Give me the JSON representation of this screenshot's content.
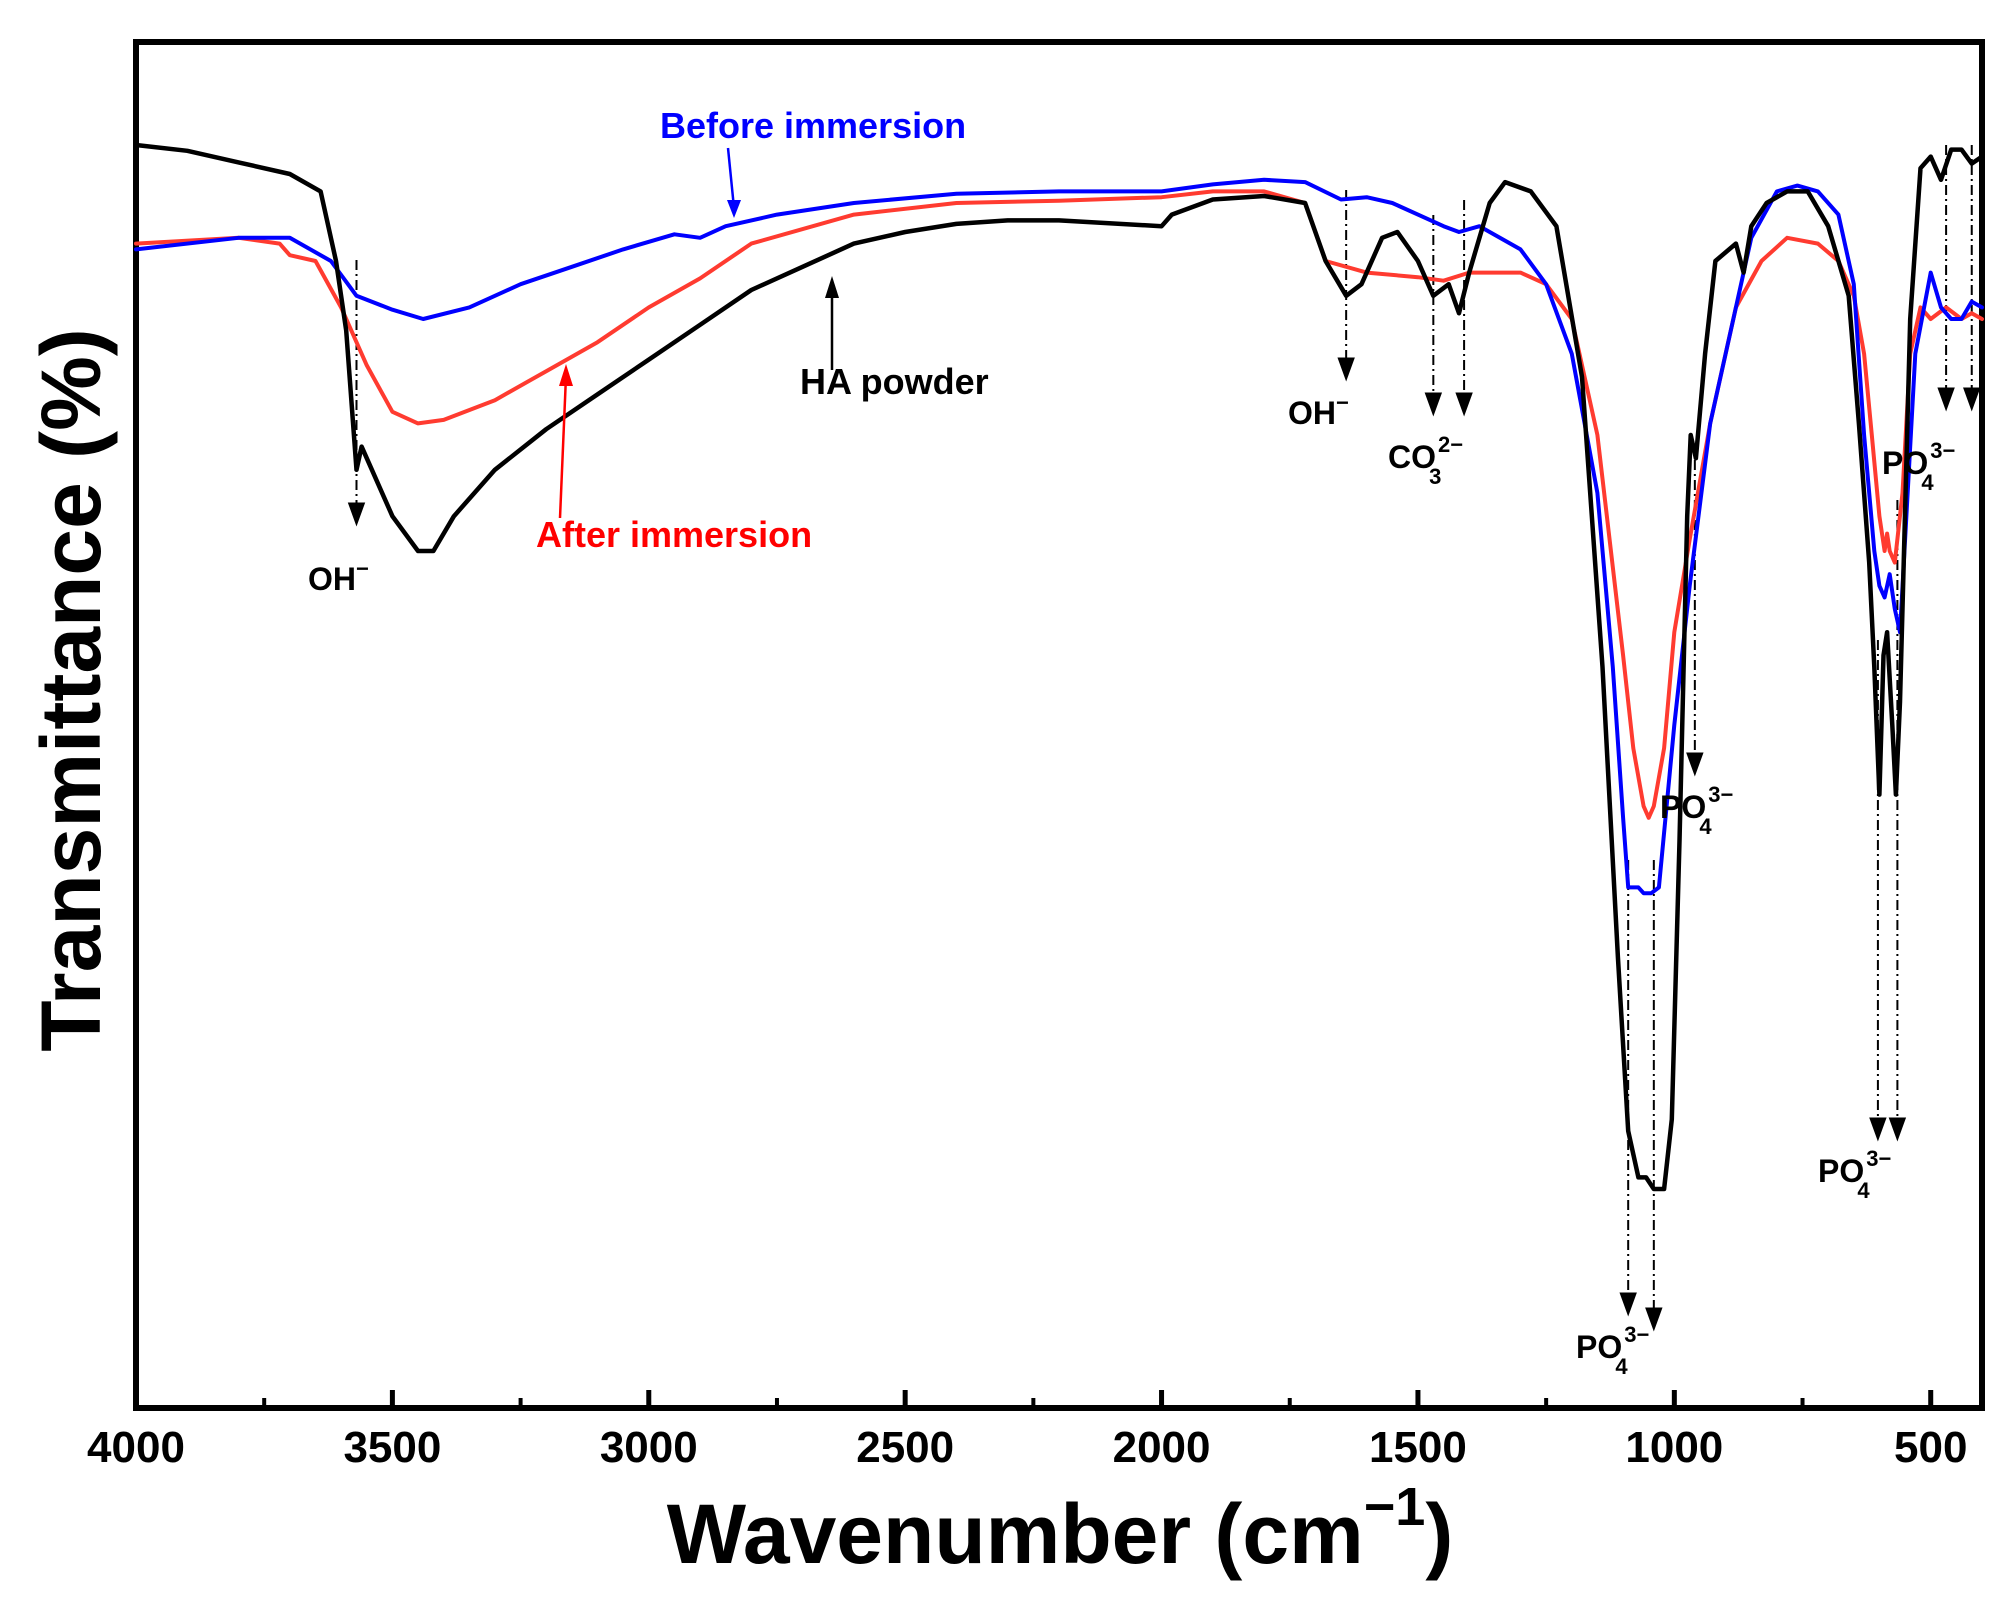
{
  "chart_data": {
    "type": "line",
    "title": "",
    "xlabel": "Wavenumber (cm",
    "xlabel_sup": "−1",
    "xlabel_close": ")",
    "ylabel": "Transmittance (%)",
    "xlim": [
      4000,
      400
    ],
    "ylim": [
      0,
      100
    ],
    "x_ticks": [
      4000,
      3500,
      3000,
      2500,
      2000,
      1500,
      1000,
      500
    ],
    "x_tick_labels": [
      "4000",
      "3500",
      "3000",
      "2500",
      "2000",
      "1500",
      "1000",
      "500"
    ],
    "y_ticks_shown": false,
    "legend": "inline labels",
    "series": [
      {
        "name": "Before immersion",
        "color": "#0000ff",
        "points": [
          [
            4000,
            91
          ],
          [
            3800,
            92
          ],
          [
            3700,
            92
          ],
          [
            3620,
            90
          ],
          [
            3570,
            87
          ],
          [
            3500,
            85.8
          ],
          [
            3440,
            85
          ],
          [
            3350,
            86
          ],
          [
            3250,
            88
          ],
          [
            3150,
            89.5
          ],
          [
            3050,
            91
          ],
          [
            2950,
            92.3
          ],
          [
            2900,
            92
          ],
          [
            2850,
            93
          ],
          [
            2750,
            94
          ],
          [
            2600,
            95
          ],
          [
            2400,
            95.8
          ],
          [
            2200,
            96
          ],
          [
            2000,
            96
          ],
          [
            1900,
            96.6
          ],
          [
            1800,
            97
          ],
          [
            1720,
            96.8
          ],
          [
            1650,
            95.3
          ],
          [
            1600,
            95.5
          ],
          [
            1550,
            95
          ],
          [
            1500,
            94
          ],
          [
            1450,
            93
          ],
          [
            1420,
            92.5
          ],
          [
            1380,
            93
          ],
          [
            1300,
            91
          ],
          [
            1250,
            88
          ],
          [
            1200,
            82
          ],
          [
            1150,
            70
          ],
          [
            1120,
            55
          ],
          [
            1100,
            42
          ],
          [
            1090,
            36
          ],
          [
            1070,
            36
          ],
          [
            1060,
            35.5
          ],
          [
            1045,
            35.5
          ],
          [
            1030,
            36
          ],
          [
            1000,
            50
          ],
          [
            970,
            62
          ],
          [
            930,
            76
          ],
          [
            880,
            86
          ],
          [
            850,
            92
          ],
          [
            800,
            96
          ],
          [
            760,
            96.5
          ],
          [
            720,
            96
          ],
          [
            680,
            94
          ],
          [
            650,
            88
          ],
          [
            630,
            75
          ],
          [
            610,
            65
          ],
          [
            600,
            62
          ],
          [
            590,
            61
          ],
          [
            580,
            63
          ],
          [
            570,
            60
          ],
          [
            560,
            58
          ],
          [
            550,
            66
          ],
          [
            530,
            82
          ],
          [
            500,
            89
          ],
          [
            480,
            86
          ],
          [
            460,
            85
          ],
          [
            440,
            85
          ],
          [
            420,
            86.5
          ],
          [
            400,
            86
          ]
        ]
      },
      {
        "name": "After immersion",
        "color": "#ff3b30",
        "points": [
          [
            4000,
            91.5
          ],
          [
            3800,
            92
          ],
          [
            3720,
            91.5
          ],
          [
            3700,
            90.5
          ],
          [
            3650,
            90
          ],
          [
            3600,
            86
          ],
          [
            3550,
            81
          ],
          [
            3500,
            77
          ],
          [
            3450,
            76
          ],
          [
            3400,
            76.3
          ],
          [
            3300,
            78
          ],
          [
            3200,
            80.5
          ],
          [
            3100,
            83
          ],
          [
            3000,
            86
          ],
          [
            2900,
            88.5
          ],
          [
            2800,
            91.5
          ],
          [
            2600,
            94
          ],
          [
            2400,
            95
          ],
          [
            2200,
            95.2
          ],
          [
            2000,
            95.5
          ],
          [
            1900,
            96
          ],
          [
            1800,
            96
          ],
          [
            1720,
            95
          ],
          [
            1680,
            90
          ],
          [
            1600,
            89
          ],
          [
            1500,
            88.6
          ],
          [
            1450,
            88.3
          ],
          [
            1400,
            89
          ],
          [
            1300,
            89
          ],
          [
            1250,
            88
          ],
          [
            1200,
            85
          ],
          [
            1150,
            75
          ],
          [
            1100,
            56
          ],
          [
            1080,
            48
          ],
          [
            1060,
            43
          ],
          [
            1050,
            42
          ],
          [
            1040,
            43
          ],
          [
            1020,
            48
          ],
          [
            1000,
            58
          ],
          [
            970,
            66
          ],
          [
            930,
            76
          ],
          [
            880,
            86
          ],
          [
            830,
            90
          ],
          [
            780,
            92
          ],
          [
            720,
            91.5
          ],
          [
            680,
            90
          ],
          [
            650,
            87
          ],
          [
            630,
            82
          ],
          [
            615,
            75
          ],
          [
            600,
            68
          ],
          [
            590,
            65
          ],
          [
            585,
            66.5
          ],
          [
            580,
            65
          ],
          [
            570,
            64
          ],
          [
            555,
            70
          ],
          [
            540,
            82
          ],
          [
            520,
            86
          ],
          [
            500,
            85
          ],
          [
            470,
            86
          ],
          [
            440,
            85
          ],
          [
            420,
            85.5
          ],
          [
            400,
            85
          ]
        ]
      },
      {
        "name": "HA powder",
        "color": "#000000",
        "points": [
          [
            4000,
            100
          ],
          [
            3900,
            99.5
          ],
          [
            3800,
            98.5
          ],
          [
            3700,
            97.5
          ],
          [
            3640,
            96
          ],
          [
            3610,
            90
          ],
          [
            3590,
            84
          ],
          [
            3570,
            72
          ],
          [
            3560,
            74
          ],
          [
            3540,
            72
          ],
          [
            3500,
            68
          ],
          [
            3450,
            65
          ],
          [
            3420,
            65
          ],
          [
            3380,
            68
          ],
          [
            3300,
            72
          ],
          [
            3200,
            75.5
          ],
          [
            3100,
            78.5
          ],
          [
            3000,
            81.5
          ],
          [
            2900,
            84.5
          ],
          [
            2800,
            87.5
          ],
          [
            2700,
            89.5
          ],
          [
            2600,
            91.5
          ],
          [
            2500,
            92.5
          ],
          [
            2400,
            93.2
          ],
          [
            2300,
            93.5
          ],
          [
            2200,
            93.5
          ],
          [
            2000,
            93
          ],
          [
            1980,
            94
          ],
          [
            1900,
            95.3
          ],
          [
            1800,
            95.6
          ],
          [
            1720,
            95
          ],
          [
            1680,
            90
          ],
          [
            1640,
            87
          ],
          [
            1610,
            88
          ],
          [
            1570,
            92
          ],
          [
            1540,
            92.5
          ],
          [
            1500,
            90
          ],
          [
            1470,
            87
          ],
          [
            1440,
            88
          ],
          [
            1420,
            85.5
          ],
          [
            1400,
            89
          ],
          [
            1360,
            95
          ],
          [
            1330,
            96.8
          ],
          [
            1280,
            96
          ],
          [
            1230,
            93
          ],
          [
            1180,
            80
          ],
          [
            1140,
            55
          ],
          [
            1110,
            30
          ],
          [
            1090,
            15
          ],
          [
            1070,
            11
          ],
          [
            1055,
            11
          ],
          [
            1040,
            10
          ],
          [
            1020,
            10
          ],
          [
            1005,
            16
          ],
          [
            990,
            40
          ],
          [
            975,
            68
          ],
          [
            968,
            75
          ],
          [
            958,
            73
          ],
          [
            940,
            82
          ],
          [
            920,
            90
          ],
          [
            880,
            91.5
          ],
          [
            865,
            89
          ],
          [
            850,
            93
          ],
          [
            820,
            95
          ],
          [
            780,
            96
          ],
          [
            740,
            96
          ],
          [
            700,
            93
          ],
          [
            660,
            87
          ],
          [
            640,
            76
          ],
          [
            620,
            64
          ],
          [
            610,
            55
          ],
          [
            600,
            44
          ],
          [
            592,
            56
          ],
          [
            585,
            58
          ],
          [
            575,
            50
          ],
          [
            568,
            44
          ],
          [
            560,
            52
          ],
          [
            540,
            85
          ],
          [
            520,
            98
          ],
          [
            500,
            99
          ],
          [
            480,
            97
          ],
          [
            460,
            99.6
          ],
          [
            440,
            99.6
          ],
          [
            420,
            98.4
          ],
          [
            400,
            99
          ]
        ]
      }
    ],
    "annotations": [
      {
        "text": "Before immersion",
        "color": "#0000ff"
      },
      {
        "text": "After immersion",
        "color": "#ff0000"
      },
      {
        "text": "HA powder",
        "color": "#000000"
      },
      {
        "text": "OH",
        "sup": "−",
        "sub": "",
        "x": 3570
      },
      {
        "text": "OH",
        "sup": "−",
        "sub": "",
        "x": 1640
      },
      {
        "text": "CO",
        "sup": "2−",
        "sub": "3",
        "x": 1440
      },
      {
        "text": "PO",
        "sup": "3−",
        "sub": "4",
        "x": 960
      },
      {
        "text": "PO",
        "sup": "3−",
        "sub": "4",
        "x": 1070
      },
      {
        "text": "PO",
        "sup": "3−",
        "sub": "4",
        "x": 580
      },
      {
        "text": "PO",
        "sup": "3−",
        "sub": "4",
        "x": 450
      }
    ]
  }
}
